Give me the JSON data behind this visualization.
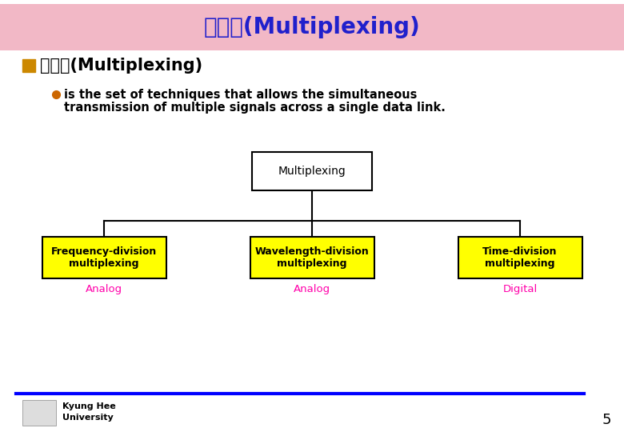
{
  "title": "다중화(Multiplexing)",
  "title_bg_color": "#f2b8c6",
  "title_text_color": "#2020cc",
  "slide_bg_color": "#ffffff",
  "heading_text": "다중화(Multiplexing)",
  "heading_color": "#000000",
  "checkbox_color": "#cc8800",
  "bullet_text_line1": "is the set of techniques that allows the simultaneous",
  "bullet_text_line2": "transmission of multiple signals across a single data link.",
  "bullet_color": "#cc6600",
  "bullet_text_color": "#000000",
  "tree_root_label": "Multiplexing",
  "tree_children": [
    "Frequency-division\nmultiplexing",
    "Wavelength-division\nmultiplexing",
    "Time-division\nmultiplexing"
  ],
  "tree_child_labels": [
    "Analog",
    "Analog",
    "Digital"
  ],
  "tree_box_fill": "#ffff00",
  "tree_box_edge": "#000000",
  "tree_root_fill": "#ffffff",
  "tree_label_color": "#ff00aa",
  "bottom_line_color": "#0000ff",
  "footer_text1": "Kyung Hee",
  "footer_text2": "University",
  "footer_color": "#000000",
  "page_number": "5",
  "page_number_color": "#000000"
}
